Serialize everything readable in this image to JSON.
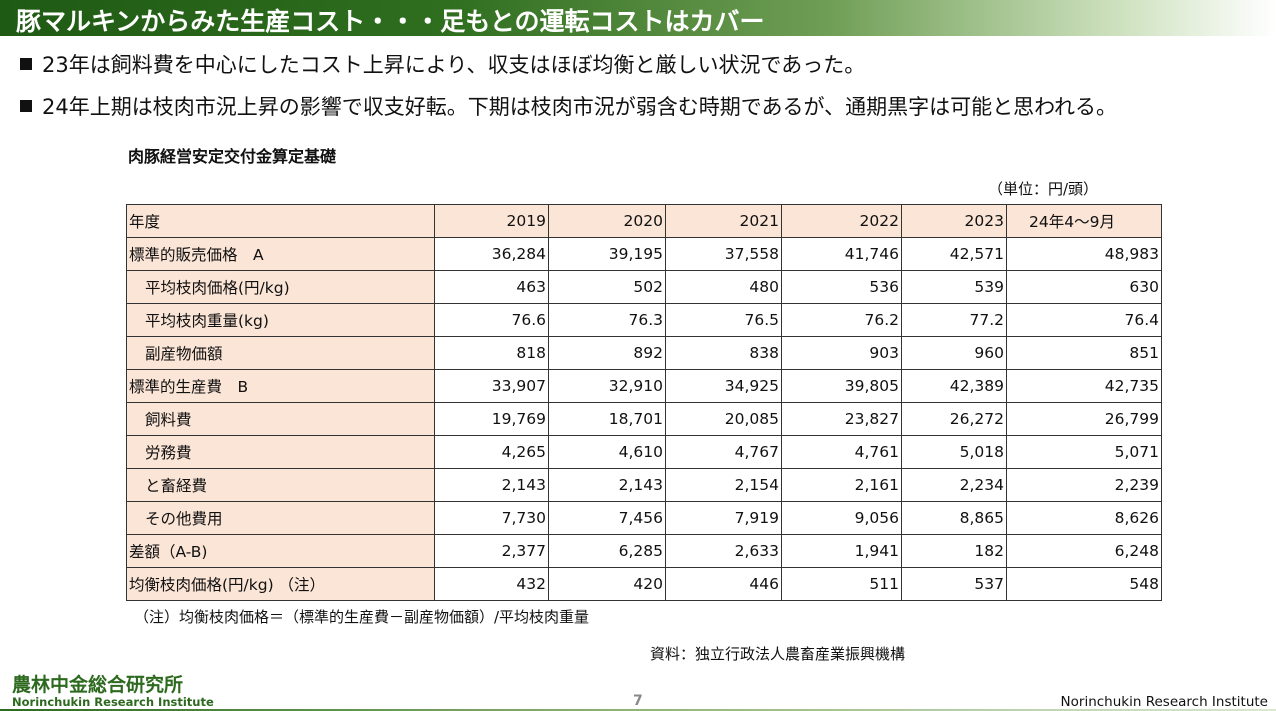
{
  "title": "豚マルキンからみた生産コスト・・・足もとの運転コストはカバー",
  "bullets": [
    "23年は飼料費を中心にしたコスト上昇により、収支はほぼ均衡と厳しい状況であった。",
    "24年上期は枝肉市況上昇の影響で収支好転。下期は枝肉市況が弱含む時期であるが、通期黒字は可能と思われる。"
  ],
  "table": {
    "title": "肉豚経営安定交付金算定基礎",
    "unit": "（単位：円/頭）",
    "header": [
      "年度",
      "2019",
      "2020",
      "2021",
      "2022",
      "2023",
      "24年4～9月"
    ],
    "rows": [
      [
        "標準的販売価格　A",
        "36,284",
        "39,195",
        "37,558",
        "41,746",
        "42,571",
        "48,983"
      ],
      [
        "平均枝肉価格(円/kg)",
        "463",
        "502",
        "480",
        "536",
        "539",
        "630"
      ],
      [
        "平均枝肉重量(kg)",
        "76.6",
        "76.3",
        "76.5",
        "76.2",
        "77.2",
        "76.4"
      ],
      [
        "副産物価額",
        "818",
        "892",
        "838",
        "903",
        "960",
        "851"
      ],
      [
        "標準的生産費　B",
        "33,907",
        "32,910",
        "34,925",
        "39,805",
        "42,389",
        "42,735"
      ],
      [
        "飼料費",
        "19,769",
        "18,701",
        "20,085",
        "23,827",
        "26,272",
        "26,799"
      ],
      [
        "労務費",
        "4,265",
        "4,610",
        "4,767",
        "4,761",
        "5,018",
        "5,071"
      ],
      [
        "と畜経費",
        "2,143",
        "2,143",
        "2,154",
        "2,161",
        "2,234",
        "2,239"
      ],
      [
        "その他費用",
        "7,730",
        "7,456",
        "7,919",
        "9,056",
        "8,865",
        "8,626"
      ],
      [
        "差額（A-B)",
        "2,377",
        "6,285",
        "2,633",
        "1,941",
        "182",
        "6,248"
      ],
      [
        "均衡枝肉価格(円/kg) （注）",
        "432",
        "420",
        "446",
        "511",
        "537",
        "548"
      ]
    ],
    "note": "（注）均衡枝肉価格＝（標準的生産費－副産物価額）/平均枝肉重量",
    "source": "資料：独立行政法人農畜産業振興機構"
  },
  "footer": {
    "logo_jp": "農林中金総合研究所",
    "logo_en": "Norinchukin Research Institute",
    "page": "7",
    "org": "Norinchukin Research Institute"
  }
}
